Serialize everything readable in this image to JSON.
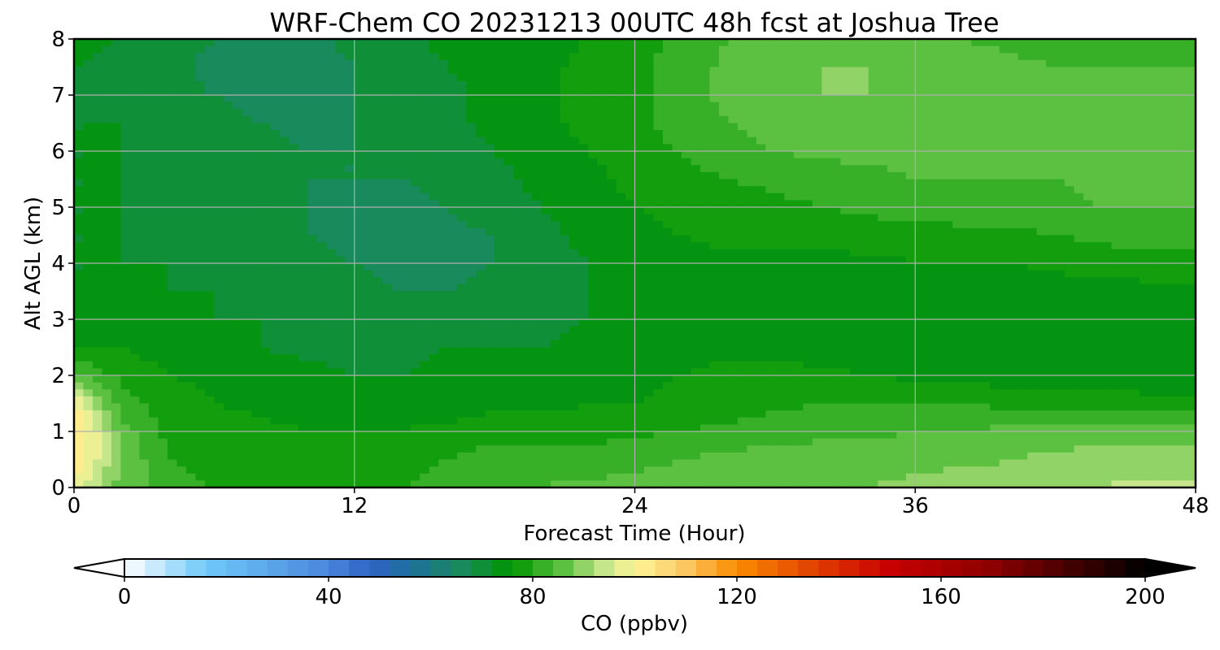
{
  "chart_data": {
    "type": "heatmap",
    "title": "WRF-Chem CO  20231213 00UTC 48h fcst at Joshua Tree",
    "xlabel": "Forecast Time (Hour)",
    "ylabel": "Alt AGL (km)",
    "xlim": [
      0,
      48
    ],
    "ylim": [
      0,
      8
    ],
    "xticks": [
      0,
      12,
      24,
      36,
      48
    ],
    "yticks": [
      0,
      1,
      2,
      3,
      4,
      5,
      6,
      7,
      8
    ],
    "grid": true,
    "x": [
      0,
      2,
      4,
      6,
      8,
      10,
      12,
      14,
      16,
      18,
      20,
      22,
      24,
      26,
      28,
      30,
      32,
      34,
      36,
      38,
      40,
      42,
      44,
      46,
      48
    ],
    "y": [
      0,
      0.5,
      1,
      1.5,
      2,
      2.5,
      3,
      3.5,
      4,
      4.5,
      5,
      5.5,
      6,
      6.5,
      7,
      7.5,
      8
    ],
    "z": [
      [
        98,
        86,
        82,
        80,
        78,
        78,
        78,
        80,
        82,
        84,
        84,
        85,
        85,
        86,
        87,
        88,
        88,
        88,
        89,
        90,
        90,
        91,
        92,
        93,
        93
      ],
      [
        104,
        88,
        80,
        78,
        78,
        78,
        78,
        78,
        80,
        82,
        82,
        82,
        83,
        84,
        85,
        86,
        86,
        86,
        87,
        87,
        88,
        89,
        90,
        90,
        90
      ],
      [
        106,
        86,
        79,
        78,
        77,
        76,
        76,
        76,
        77,
        78,
        78,
        78,
        79,
        80,
        81,
        82,
        83,
        83,
        84,
        84,
        85,
        85,
        86,
        86,
        85
      ],
      [
        100,
        82,
        78,
        76,
        75,
        74,
        74,
        74,
        74,
        75,
        75,
        76,
        76,
        77,
        78,
        79,
        80,
        80,
        80,
        80,
        79,
        79,
        78,
        77,
        77
      ],
      [
        84,
        79,
        76,
        75,
        74,
        73,
        72,
        72,
        73,
        73,
        74,
        74,
        75,
        76,
        77,
        77,
        77,
        76,
        75,
        74,
        74,
        74,
        74,
        74,
        74
      ],
      [
        76,
        76,
        74,
        73,
        72,
        71,
        71,
        71,
        72,
        72,
        72,
        73,
        74,
        75,
        75,
        75,
        74,
        73,
        73,
        72,
        72,
        72,
        72,
        72,
        72
      ],
      [
        74,
        74,
        73,
        72,
        72,
        71,
        70,
        69,
        70,
        70,
        71,
        72,
        73,
        74,
        74,
        73,
        73,
        72,
        72,
        72,
        72,
        72,
        72,
        72,
        72
      ],
      [
        72,
        72,
        72,
        72,
        71,
        70,
        69,
        68,
        68,
        69,
        70,
        72,
        73,
        74,
        74,
        74,
        73,
        73,
        73,
        73,
        73,
        74,
        74,
        75,
        75
      ],
      [
        72,
        72,
        72,
        71,
        70,
        69,
        68,
        67,
        67,
        68,
        70,
        72,
        74,
        75,
        75,
        75,
        75,
        75,
        76,
        76,
        76,
        77,
        78,
        78,
        78
      ],
      [
        72,
        72,
        71,
        70,
        69,
        68,
        67,
        66,
        67,
        68,
        71,
        73,
        75,
        76,
        77,
        77,
        77,
        78,
        78,
        79,
        79,
        80,
        81,
        82,
        82
      ],
      [
        72,
        72,
        71,
        70,
        69,
        68,
        67,
        67,
        68,
        70,
        72,
        74,
        76,
        77,
        78,
        79,
        80,
        81,
        82,
        82,
        82,
        83,
        84,
        84,
        84
      ],
      [
        72,
        72,
        71,
        70,
        69,
        68,
        68,
        68,
        69,
        71,
        73,
        75,
        77,
        79,
        80,
        81,
        82,
        83,
        84,
        84,
        84,
        84,
        85,
        85,
        85
      ],
      [
        72,
        72,
        71,
        70,
        69,
        68,
        68,
        69,
        70,
        72,
        74,
        76,
        78,
        80,
        82,
        84,
        85,
        85,
        85,
        85,
        84,
        84,
        85,
        86,
        86
      ],
      [
        72,
        72,
        70,
        69,
        68,
        67,
        68,
        69,
        71,
        73,
        75,
        77,
        79,
        82,
        84,
        86,
        87,
        87,
        86,
        85,
        85,
        85,
        85,
        85,
        85
      ],
      [
        71,
        71,
        69,
        68,
        67,
        66,
        68,
        69,
        71,
        73,
        75,
        77,
        79,
        82,
        85,
        87,
        88,
        88,
        87,
        86,
        86,
        86,
        85,
        85,
        85
      ],
      [
        72,
        71,
        69,
        67,
        66,
        66,
        68,
        70,
        72,
        74,
        75,
        77,
        79,
        82,
        85,
        87,
        88,
        88,
        87,
        86,
        85,
        84,
        84,
        84,
        84
      ],
      [
        73,
        72,
        70,
        68,
        67,
        67,
        69,
        71,
        73,
        74,
        75,
        76,
        78,
        81,
        84,
        86,
        87,
        87,
        86,
        84,
        83,
        82,
        82,
        81,
        81
      ]
    ],
    "colorbar": {
      "label": "CO  (ppbv)",
      "min": 0,
      "max": 200,
      "ticks": [
        0,
        40,
        80,
        120,
        160,
        200
      ],
      "extend": "both",
      "stops": [
        {
          "v": 0,
          "c": "#ffffff"
        },
        {
          "v": 16,
          "c": "#6ec8f8"
        },
        {
          "v": 40,
          "c": "#4a86dc"
        },
        {
          "v": 48,
          "c": "#2f63c6"
        },
        {
          "v": 56,
          "c": "#1e6f9e"
        },
        {
          "v": 66,
          "c": "#198a5c"
        },
        {
          "v": 76,
          "c": "#009600"
        },
        {
          "v": 86,
          "c": "#5cc040"
        },
        {
          "v": 94,
          "c": "#c6e68c"
        },
        {
          "v": 100,
          "c": "#fff59a"
        },
        {
          "v": 110,
          "c": "#fcc760"
        },
        {
          "v": 120,
          "c": "#fa8c00"
        },
        {
          "v": 136,
          "c": "#e03c00"
        },
        {
          "v": 150,
          "c": "#c80000"
        },
        {
          "v": 170,
          "c": "#8c0000"
        },
        {
          "v": 190,
          "c": "#2e0000"
        },
        {
          "v": 200,
          "c": "#000000"
        }
      ]
    }
  }
}
